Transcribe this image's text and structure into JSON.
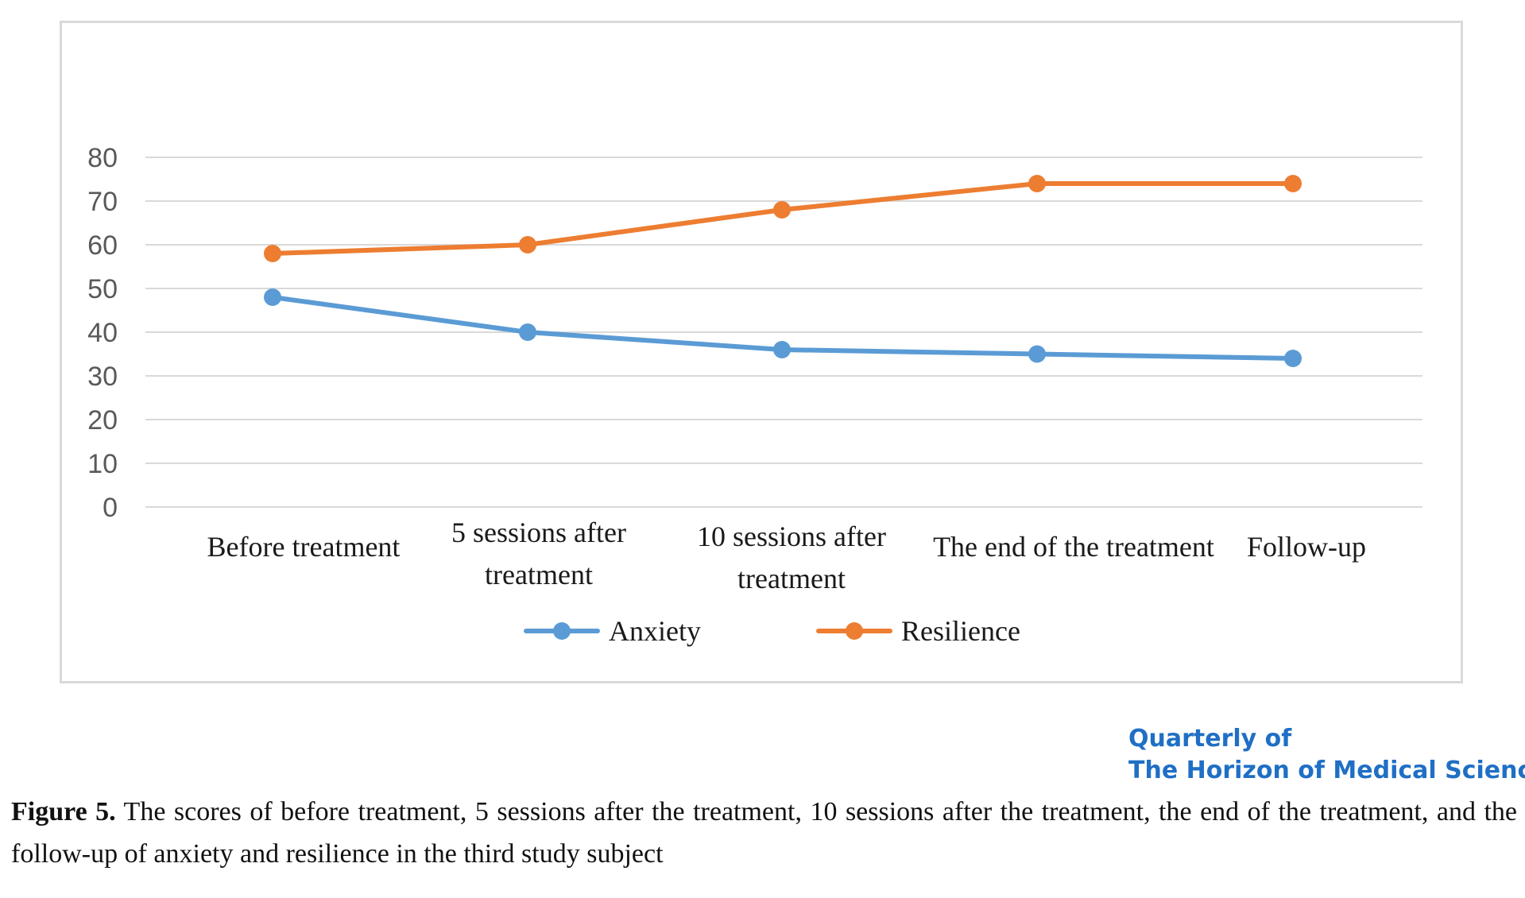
{
  "chart_data": {
    "type": "line",
    "categories": [
      [
        "Before treatment"
      ],
      [
        "5 sessions after",
        "treatment"
      ],
      [
        "10 sessions after",
        "treatment"
      ],
      [
        "The end of the treatment"
      ],
      [
        "Follow-up"
      ]
    ],
    "series": [
      {
        "name": "Anxiety",
        "values": [
          48,
          40,
          36,
          35,
          34
        ],
        "color": "#5b9bd5"
      },
      {
        "name": "Resilience",
        "values": [
          58,
          60,
          68,
          74,
          74
        ],
        "color": "#ed7d31"
      }
    ],
    "yticks": [
      0,
      10,
      20,
      30,
      40,
      50,
      60,
      70,
      80
    ],
    "ylim": [
      0,
      80
    ],
    "grid": true,
    "legend_position": "bottom",
    "title": "",
    "xlabel": "",
    "ylabel": ""
  },
  "journal_mark": {
    "line1": "Quarterly of",
    "line2": "The Horizon of Medical Sciences"
  },
  "caption": {
    "label": "Figure 5.",
    "text": " The scores of before treatment, 5 sessions after the treatment, 10 sessions after the treatment, the end of the treatment, and the follow-up of anxiety and resilience in the third study subject"
  }
}
